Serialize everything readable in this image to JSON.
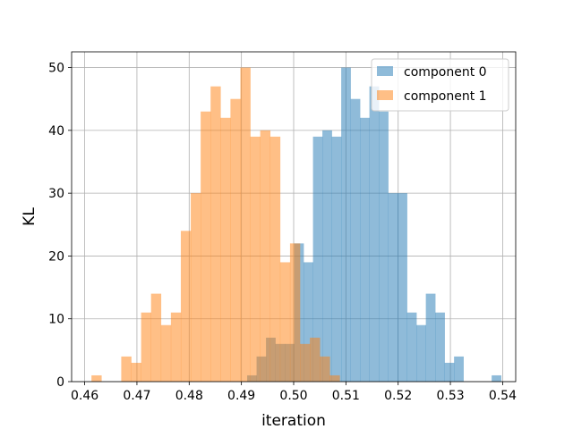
{
  "chart_data": {
    "type": "histogram",
    "title": "",
    "xlabel": "iteration",
    "ylabel": "KL",
    "xlim": [
      0.4575,
      0.5425
    ],
    "ylim": [
      0,
      52.5
    ],
    "xticks": [
      "0.46",
      "0.47",
      "0.48",
      "0.49",
      "0.50",
      "0.51",
      "0.52",
      "0.53",
      "0.54"
    ],
    "xtick_values": [
      0.46,
      0.47,
      0.48,
      0.49,
      0.5,
      0.51,
      0.52,
      0.53,
      0.54
    ],
    "yticks": [
      "0",
      "10",
      "20",
      "30",
      "40",
      "50"
    ],
    "ytick_values": [
      0,
      10,
      20,
      30,
      40,
      50
    ],
    "grid": true,
    "legend_position": "top-right",
    "series": [
      {
        "name": "component 0",
        "color": "#1f77b4",
        "alpha": 0.5,
        "bins": [
          [
            0.4911,
            0.4929,
            1
          ],
          [
            0.4929,
            0.4947,
            4
          ],
          [
            0.4947,
            0.4965,
            7
          ],
          [
            0.4965,
            0.4983,
            6
          ],
          [
            0.4983,
            0.5001,
            6
          ],
          [
            0.5001,
            0.5019,
            22
          ],
          [
            0.5019,
            0.5037,
            19
          ],
          [
            0.5037,
            0.5055,
            39
          ],
          [
            0.5055,
            0.5073,
            40
          ],
          [
            0.5073,
            0.5091,
            39
          ],
          [
            0.5091,
            0.5109,
            50
          ],
          [
            0.5109,
            0.5127,
            45
          ],
          [
            0.5127,
            0.5145,
            42
          ],
          [
            0.5145,
            0.5163,
            47
          ],
          [
            0.5163,
            0.5181,
            43
          ],
          [
            0.5181,
            0.5199,
            30
          ],
          [
            0.5199,
            0.5217,
            30
          ],
          [
            0.5217,
            0.5235,
            11
          ],
          [
            0.5235,
            0.5253,
            9
          ],
          [
            0.5253,
            0.5271,
            14
          ],
          [
            0.5271,
            0.5289,
            11
          ],
          [
            0.5289,
            0.5307,
            3
          ],
          [
            0.5307,
            0.5325,
            4
          ],
          [
            0.5325,
            0.5343,
            0
          ],
          [
            0.5343,
            0.5361,
            0
          ],
          [
            0.5361,
            0.5379,
            0
          ],
          [
            0.5379,
            0.5397,
            1
          ]
        ]
      },
      {
        "name": "component 1",
        "color": "#ff7f0e",
        "alpha": 0.5,
        "bins": [
          [
            0.4613,
            0.4632,
            1
          ],
          [
            0.4632,
            0.4651,
            0
          ],
          [
            0.4651,
            0.467,
            0
          ],
          [
            0.467,
            0.4689,
            4
          ],
          [
            0.4689,
            0.4708,
            3
          ],
          [
            0.4708,
            0.4727,
            11
          ],
          [
            0.4727,
            0.4746,
            14
          ],
          [
            0.4746,
            0.4765,
            9
          ],
          [
            0.4765,
            0.4784,
            11
          ],
          [
            0.4784,
            0.4803,
            24
          ],
          [
            0.4803,
            0.4822,
            30
          ],
          [
            0.4822,
            0.4841,
            43
          ],
          [
            0.4841,
            0.486,
            47
          ],
          [
            0.486,
            0.4879,
            42
          ],
          [
            0.4879,
            0.4898,
            45
          ],
          [
            0.4898,
            0.4917,
            50
          ],
          [
            0.4917,
            0.4936,
            39
          ],
          [
            0.4936,
            0.4955,
            40
          ],
          [
            0.4955,
            0.4974,
            39
          ],
          [
            0.4974,
            0.4993,
            19
          ],
          [
            0.4993,
            0.5012,
            22
          ],
          [
            0.5012,
            0.5031,
            6
          ],
          [
            0.5031,
            0.505,
            7
          ],
          [
            0.505,
            0.5069,
            4
          ],
          [
            0.5069,
            0.5088,
            1
          ]
        ]
      }
    ]
  }
}
